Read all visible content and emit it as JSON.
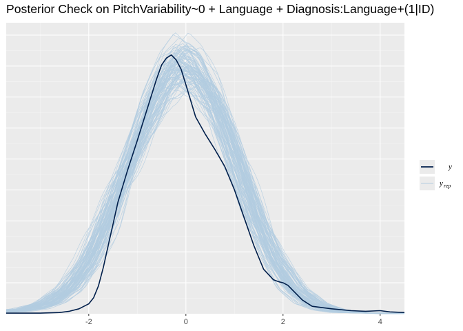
{
  "colors": {
    "panel_bg": "#ebebeb",
    "grid_major": "#ffffff",
    "grid_minor": "#f5f5f5",
    "y_line": "#011f4b",
    "yrep_line": "#b3cde0"
  },
  "chart_data": {
    "type": "line",
    "title": "Posterior Check on PitchVariability~0 + Language + Diagnosis:Language+(1|ID)",
    "xlabel": "",
    "ylabel": "",
    "xlim": [
      -3.7,
      4.5
    ],
    "ylim": [
      0,
      0.47
    ],
    "x_ticks": [
      -2,
      0,
      2,
      4
    ],
    "x_tick_labels": [
      "-2",
      "0",
      "2",
      "4"
    ],
    "grid": true,
    "legend_position": "right",
    "legend": [
      {
        "label": "y",
        "subscript": "",
        "color": "#011f4b"
      },
      {
        "label": "y",
        "subscript": "rep",
        "color": "#b3cde0"
      }
    ],
    "series": [
      {
        "name": "y",
        "x": [
          -3.7,
          -3.0,
          -2.6,
          -2.4,
          -2.2,
          -2.0,
          -1.9,
          -1.8,
          -1.7,
          -1.6,
          -1.5,
          -1.4,
          -1.2,
          -1.0,
          -0.8,
          -0.6,
          -0.5,
          -0.4,
          -0.3,
          -0.2,
          -0.1,
          0.0,
          0.2,
          0.4,
          0.6,
          0.8,
          1.0,
          1.2,
          1.4,
          1.6,
          1.8,
          1.9,
          2.0,
          2.1,
          2.2,
          2.4,
          2.6,
          3.0,
          3.4,
          3.7,
          4.0,
          4.2,
          4.5
        ],
        "values": [
          0.001,
          0.001,
          0.002,
          0.004,
          0.008,
          0.016,
          0.026,
          0.045,
          0.075,
          0.11,
          0.145,
          0.18,
          0.232,
          0.28,
          0.33,
          0.38,
          0.402,
          0.413,
          0.418,
          0.41,
          0.395,
          0.37,
          0.318,
          0.29,
          0.265,
          0.238,
          0.2,
          0.155,
          0.11,
          0.072,
          0.055,
          0.052,
          0.05,
          0.046,
          0.038,
          0.022,
          0.012,
          0.008,
          0.005,
          0.004,
          0.005,
          0.003,
          0.002
        ]
      }
    ],
    "replications": {
      "name": "y_rep",
      "count": 100,
      "x": [
        -3.7,
        -3.2,
        -2.8,
        -2.4,
        -2.0,
        -1.6,
        -1.2,
        -0.8,
        -0.4,
        -0.1,
        0.2,
        0.6,
        1.0,
        1.4,
        1.8,
        2.2,
        2.6,
        3.0,
        3.4,
        4.0,
        4.5
      ],
      "values": [
        0.003,
        0.008,
        0.018,
        0.04,
        0.085,
        0.155,
        0.236,
        0.32,
        0.385,
        0.41,
        0.395,
        0.34,
        0.255,
        0.165,
        0.09,
        0.04,
        0.016,
        0.006,
        0.002,
        0.001,
        0.0
      ]
    }
  }
}
